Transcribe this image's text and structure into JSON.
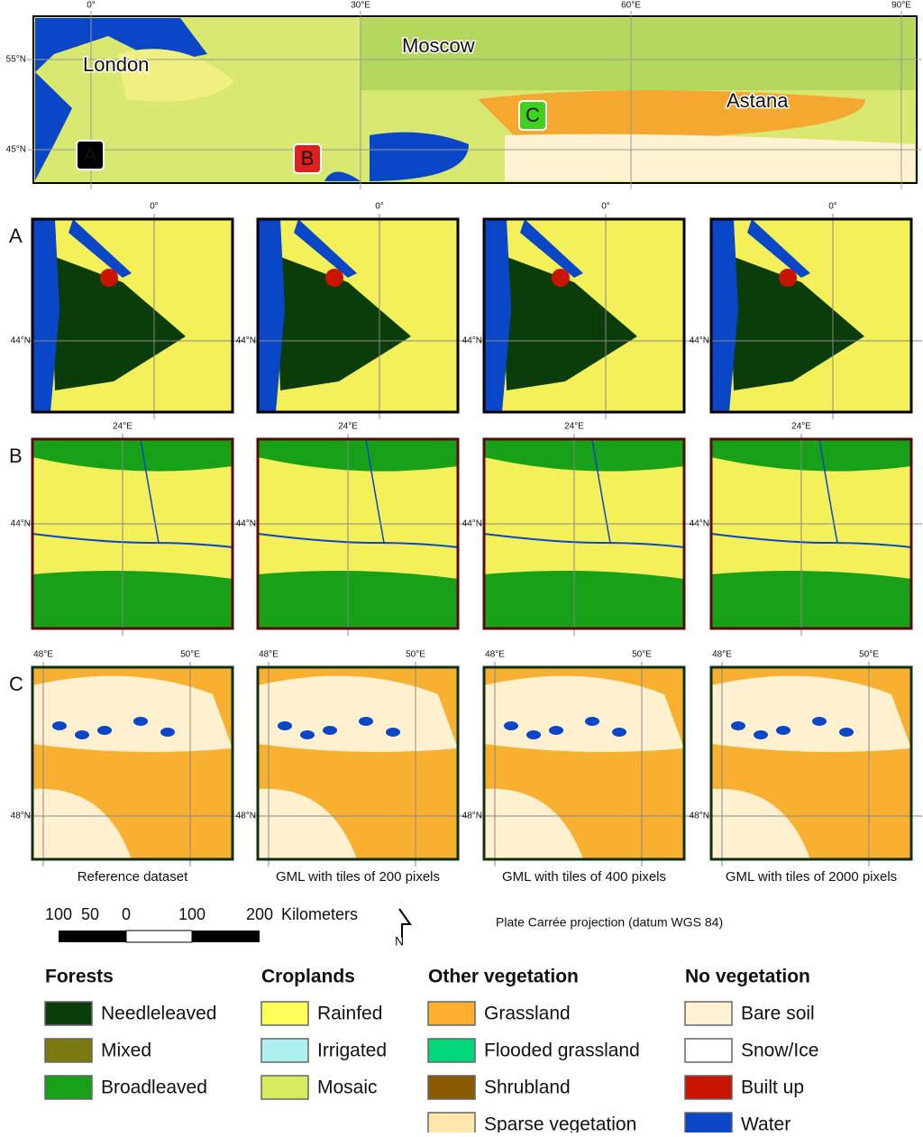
{
  "overview_map": {
    "lon_labels": [
      "0°",
      "30°E",
      "60°E",
      "90°E"
    ],
    "lat_labels": [
      "55°N",
      "45°N"
    ],
    "cities": [
      "London",
      "Moscow",
      "Astana"
    ],
    "sites": [
      "A",
      "B",
      "C"
    ]
  },
  "rows": [
    {
      "label": "A",
      "lon_labels": [
        "0°"
      ],
      "lat_labels": [
        "44°N"
      ]
    },
    {
      "label": "B",
      "lon_labels": [
        "24°E"
      ],
      "lat_labels": [
        "44°N"
      ]
    },
    {
      "label": "C",
      "lon_labels": [
        "48°E",
        "50°E"
      ],
      "lat_labels": [
        "48°N"
      ]
    }
  ],
  "columns": [
    "Reference dataset",
    "GML with tiles of 200 pixels",
    "GML with tiles of 400 pixels",
    "GML with tiles of 2000 pixels"
  ],
  "scale_bar": {
    "labels": [
      "100",
      "50",
      "0",
      "100",
      "200"
    ],
    "unit": "Kilometers"
  },
  "north_arrow": "N",
  "projection": "Plate Carrée projection (datum WGS 84)",
  "legend": [
    {
      "title": "Forests",
      "items": [
        {
          "name": "Needleleaved",
          "color": "#0b3d0b"
        },
        {
          "name": "Mixed",
          "color": "#7a7a10"
        },
        {
          "name": "Broadleaved",
          "color": "#18a018"
        }
      ]
    },
    {
      "title": "Croplands",
      "items": [
        {
          "name": "Rainfed",
          "color": "#ffff5a"
        },
        {
          "name": "Irrigated",
          "color": "#aef0f0"
        },
        {
          "name": "Mosaic",
          "color": "#d6ec5e"
        }
      ]
    },
    {
      "title": "Other vegetation",
      "items": [
        {
          "name": "Grassland",
          "color": "#ffb030"
        },
        {
          "name": "Flooded grassland",
          "color": "#00d77a"
        },
        {
          "name": "Shrubland",
          "color": "#8a5a00"
        },
        {
          "name": "Sparse vegetation",
          "color": "#ffe6aa"
        }
      ]
    },
    {
      "title": "No vegetation",
      "items": [
        {
          "name": "Bare soil",
          "color": "#fff2d2"
        },
        {
          "name": "Snow/Ice",
          "color": "#ffffff"
        },
        {
          "name": "Built up",
          "color": "#c81400"
        },
        {
          "name": "Water",
          "color": "#0a46c8"
        }
      ]
    }
  ]
}
